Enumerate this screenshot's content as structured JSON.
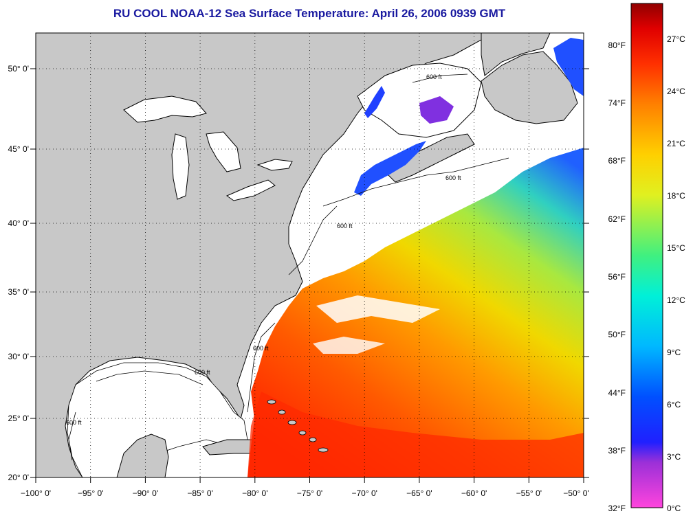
{
  "title": "RU COOL  NOAA-12  Sea Surface Temperature:  April 26, 2006 0939 GMT",
  "lon_labels": [
    "−100° 0'",
    "−95° 0'",
    "−90° 0'",
    "−85° 0'",
    "−80° 0'",
    "−75° 0'",
    "−70° 0'",
    "−65° 0'",
    "−60° 0'",
    "−55° 0'",
    "−50° 0'"
  ],
  "lat_labels": [
    "20° 0'",
    "25° 0'",
    "30° 0'",
    "35° 0'",
    "40° 0'",
    "45° 0'",
    "50° 0'"
  ],
  "colorbar": {
    "fahrenheit": [
      "80°F",
      "74°F",
      "68°F",
      "62°F",
      "56°F",
      "50°F",
      "44°F",
      "38°F",
      "32°F"
    ],
    "celsius": [
      "27°C",
      "24°C",
      "21°C",
      "18°C",
      "15°C",
      "12°C",
      "9°C",
      "6°C",
      "3°C",
      "0°C"
    ]
  },
  "isobath_label": "600 ft",
  "colors": {
    "land": "#c8c8c8",
    "nodata": "#ffffff",
    "title": "#1a1aa0"
  }
}
